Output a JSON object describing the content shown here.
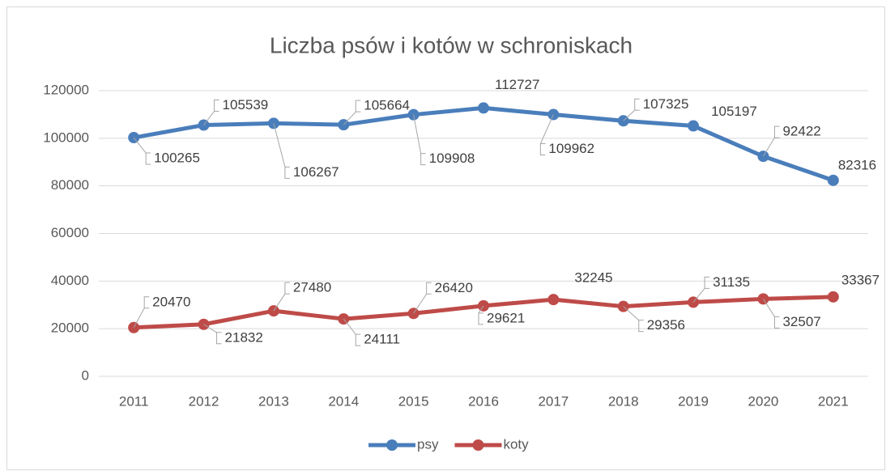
{
  "chart_data": {
    "type": "line",
    "title": "Liczba psów i kotów w schroniskach",
    "categories": [
      "2011",
      "2012",
      "2013",
      "2014",
      "2015",
      "2016",
      "2017",
      "2018",
      "2019",
      "2020",
      "2021"
    ],
    "series": [
      {
        "name": "psy",
        "color": "#4a7ebb",
        "values": [
          100265,
          105539,
          106267,
          105664,
          109908,
          112727,
          109962,
          107325,
          105197,
          92422,
          82316
        ]
      },
      {
        "name": "koty",
        "color": "#be4b48",
        "values": [
          20470,
          21832,
          27480,
          24111,
          26420,
          29621,
          32245,
          29356,
          31135,
          32507,
          33367
        ]
      }
    ],
    "ylim": [
      0,
      120000
    ],
    "yticks": [
      0,
      20000,
      40000,
      60000,
      80000,
      100000,
      120000
    ],
    "grid": true,
    "legend": "bottom",
    "data_labels": true
  }
}
